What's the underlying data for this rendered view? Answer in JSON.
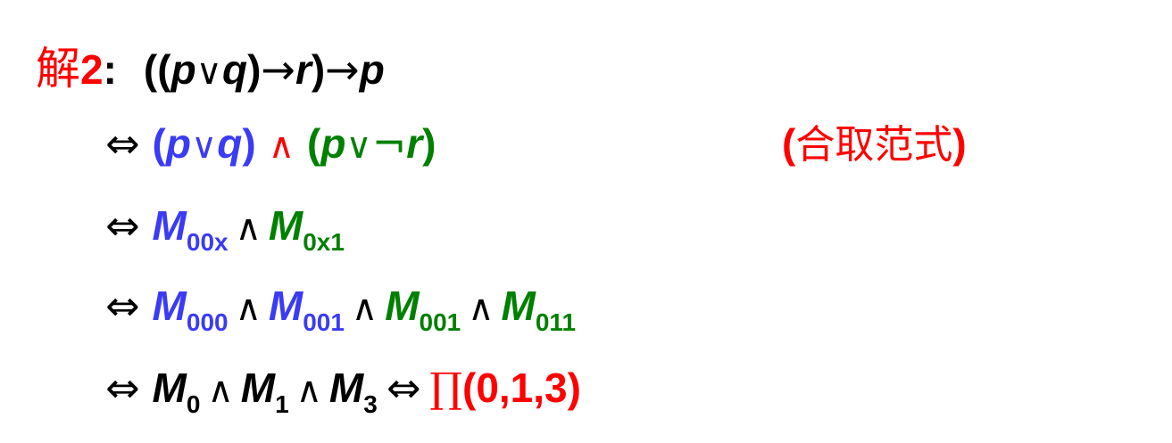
{
  "title": {
    "prefix": "解",
    "number": "2",
    "colon": ":",
    "expr_open": "((",
    "p": "p",
    "or": "∨",
    "q": "q",
    "close1": ")",
    "arrow1": "→",
    "r": "r",
    "close2": ")",
    "arrow2": "→",
    "p2": "p"
  },
  "step1": {
    "equiv": "⇔",
    "term1_open": "(",
    "term1_p": "p",
    "term1_or": "∨",
    "term1_q": "q",
    "term1_close": ")",
    "and": "∧",
    "term2_open": "(",
    "term2_p": "p",
    "term2_or": "∨",
    "term2_not": "¬",
    "term2_r": "r",
    "term2_close": ")",
    "note_open": "(",
    "note_text": "合取范式",
    "note_close": ")"
  },
  "step2": {
    "equiv": "⇔",
    "m": "M",
    "sub1": "00x",
    "and": "∧",
    "sub2": "0x1"
  },
  "step3": {
    "equiv": "⇔",
    "m": "M",
    "sub1": "000",
    "sub2": "001",
    "sub3": "001",
    "sub4": "011",
    "and": "∧"
  },
  "step4": {
    "equiv": "⇔",
    "m": "M",
    "sub1": "0",
    "sub2": "1",
    "sub3": "3",
    "and": "∧",
    "equiv2": "⇔",
    "prod": "∏",
    "list": "(0,1,3)"
  }
}
